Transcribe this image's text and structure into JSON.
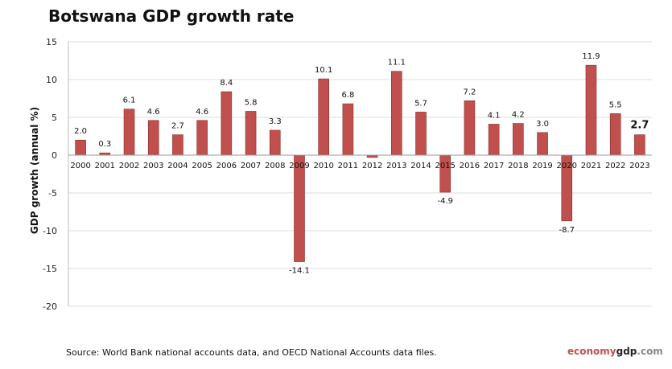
{
  "chart_data": {
    "type": "bar",
    "title": "Botswana GDP growth rate",
    "ylabel": "GDP growth (annual %)",
    "xlabel": "",
    "ylim": [
      -20,
      15
    ],
    "yticks": [
      15,
      10,
      5,
      0,
      -5,
      -10,
      -15,
      -20
    ],
    "grid": true,
    "bar_color": "#c0504d",
    "categories": [
      "2000",
      "2001",
      "2002",
      "2003",
      "2004",
      "2005",
      "2006",
      "2007",
      "2008",
      "2009",
      "2010",
      "2011",
      "2012",
      "2013",
      "2014",
      "2015",
      "2016",
      "2017",
      "2018",
      "2019",
      "2020",
      "2021",
      "2022",
      "2023"
    ],
    "values": [
      2.0,
      0.3,
      6.1,
      4.6,
      2.7,
      4.6,
      8.4,
      5.8,
      3.3,
      -14.1,
      10.1,
      6.8,
      -0.3,
      11.1,
      5.7,
      -4.9,
      7.2,
      4.1,
      4.2,
      3.0,
      -8.7,
      11.9,
      5.5,
      2.7
    ],
    "data_labels": [
      "2.0",
      "0.3",
      "6.1",
      "4.6",
      "2.7",
      "4.6",
      "8.4",
      "5.8",
      "3.3",
      "-14.1",
      "10.1",
      "6.8",
      "",
      "11.1",
      "5.7",
      "-4.9",
      "7.2",
      "4.1",
      "4.2",
      "3.0",
      "-8.7",
      "11.9",
      "5.5",
      "2.7"
    ]
  },
  "footer": {
    "source": "Source:  World Bank national accounts data, and OECD National Accounts data files.",
    "brand_a": "economy",
    "brand_b": "gdp",
    "brand_c": ".com"
  }
}
